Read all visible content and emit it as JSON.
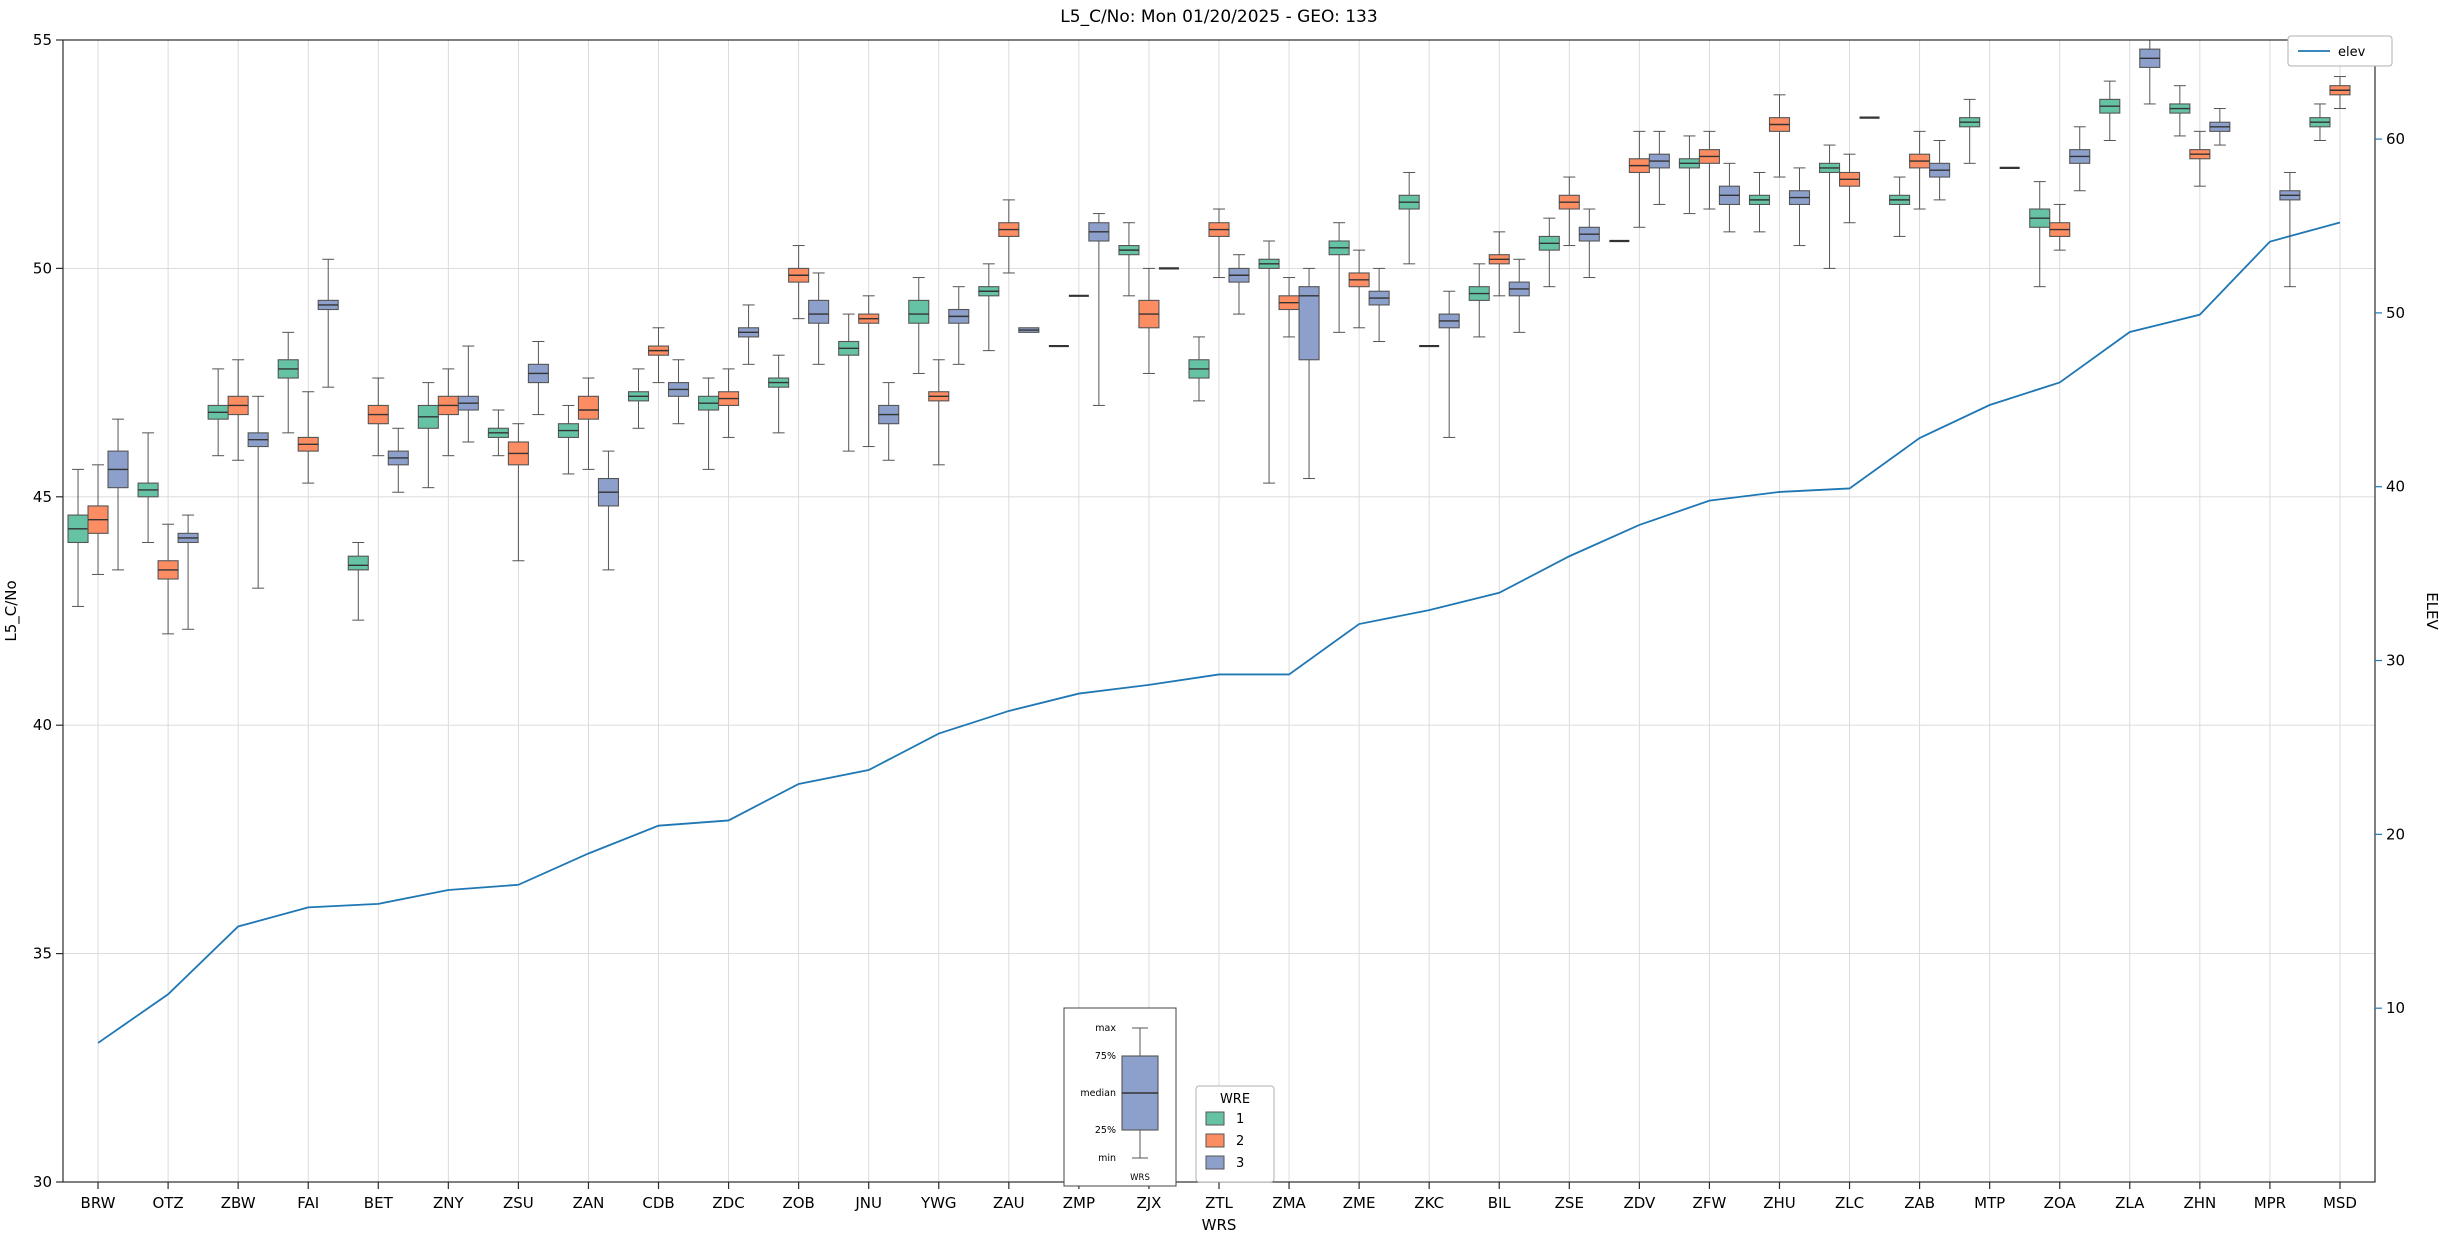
{
  "chart_data": {
    "type": "boxplot+line",
    "title": "L5_C/No: Mon 01/20/2025 - GEO: 133",
    "xlabel": "WRS",
    "ylabel_left": "L5_C/No",
    "ylabel_right": "ELEV",
    "ylim_left": [
      30,
      55
    ],
    "yticks_left": [
      30,
      35,
      40,
      45,
      50,
      55
    ],
    "ylim_right": [
      0,
      65.7
    ],
    "yticks_right": [
      10,
      20,
      30,
      40,
      50,
      60
    ],
    "grid": true,
    "categories": [
      "BRW",
      "OTZ",
      "ZBW",
      "FAI",
      "BET",
      "ZNY",
      "ZSU",
      "ZAN",
      "CDB",
      "ZDC",
      "ZOB",
      "JNU",
      "YWG",
      "ZAU",
      "ZMP",
      "ZJX",
      "ZTL",
      "ZMA",
      "ZME",
      "ZKC",
      "BIL",
      "ZSE",
      "ZDV",
      "ZFW",
      "ZHU",
      "ZLC",
      "ZAB",
      "MTP",
      "ZOA",
      "ZLA",
      "ZHN",
      "MPR",
      "MSD"
    ],
    "series_names": [
      "1",
      "2",
      "3"
    ],
    "legend_box_title": "WRE",
    "legend_line_label": "elev",
    "colors": {
      "series1": "#66c2a5",
      "series2": "#fc8d62",
      "series3": "#8da0cb",
      "line": "#1f77b4",
      "box_edge": "#555555",
      "median": "#333333",
      "grid": "#d8d8d8"
    },
    "box_format": [
      "min",
      "q1",
      "median",
      "q3",
      "max"
    ],
    "boxes": [
      [
        [
          42.6,
          44.0,
          44.3,
          44.6,
          45.6
        ],
        [
          43.3,
          44.2,
          44.5,
          44.8,
          45.7
        ],
        [
          43.4,
          45.2,
          45.6,
          46.0,
          46.7
        ]
      ],
      [
        [
          44.0,
          45.0,
          45.15,
          45.3,
          46.4
        ],
        [
          42.0,
          43.2,
          43.4,
          43.6,
          44.4
        ],
        [
          42.1,
          44.0,
          44.1,
          44.2,
          44.6
        ]
      ],
      [
        [
          45.9,
          46.7,
          46.85,
          47.0,
          47.8
        ],
        [
          45.8,
          46.8,
          47.0,
          47.2,
          48.0
        ],
        [
          43.0,
          46.1,
          46.25,
          46.4,
          47.2
        ]
      ],
      [
        [
          46.4,
          47.6,
          47.8,
          48.0,
          48.6
        ],
        [
          45.3,
          46.0,
          46.15,
          46.3,
          47.3
        ],
        [
          47.4,
          49.1,
          49.2,
          49.3,
          50.2
        ]
      ],
      [
        [
          42.3,
          43.4,
          43.5,
          43.7,
          44.0
        ],
        [
          45.9,
          46.6,
          46.8,
          47.0,
          47.6
        ],
        [
          45.1,
          45.7,
          45.85,
          46.0,
          46.5
        ]
      ],
      [
        [
          45.2,
          46.5,
          46.75,
          47.0,
          47.5
        ],
        [
          45.9,
          46.8,
          47.0,
          47.2,
          47.8
        ],
        [
          46.2,
          46.9,
          47.05,
          47.2,
          48.3
        ]
      ],
      [
        [
          45.9,
          46.3,
          46.4,
          46.5,
          46.9
        ],
        [
          43.6,
          45.7,
          45.95,
          46.2,
          46.6
        ],
        [
          46.8,
          47.5,
          47.7,
          47.9,
          48.4
        ]
      ],
      [
        [
          45.5,
          46.3,
          46.45,
          46.6,
          47.0
        ],
        [
          45.6,
          46.7,
          46.9,
          47.2,
          47.6
        ],
        [
          43.4,
          44.8,
          45.1,
          45.4,
          46.0
        ]
      ],
      [
        [
          46.5,
          47.1,
          47.2,
          47.3,
          47.8
        ],
        [
          47.5,
          48.1,
          48.2,
          48.3,
          48.7
        ],
        [
          46.6,
          47.2,
          47.35,
          47.5,
          48.0
        ]
      ],
      [
        [
          45.6,
          46.9,
          47.05,
          47.2,
          47.6
        ],
        [
          46.3,
          47.0,
          47.15,
          47.3,
          47.8
        ],
        [
          47.9,
          48.5,
          48.6,
          48.7,
          49.2
        ]
      ],
      [
        [
          46.4,
          47.4,
          47.5,
          47.6,
          48.1
        ],
        [
          48.9,
          49.7,
          49.85,
          50.0,
          50.5
        ],
        [
          47.9,
          48.8,
          49.0,
          49.3,
          49.9
        ]
      ],
      [
        [
          46.0,
          48.1,
          48.25,
          48.4,
          49.0
        ],
        [
          46.1,
          48.8,
          48.9,
          49.0,
          49.4
        ],
        [
          45.8,
          46.6,
          46.8,
          47.0,
          47.5
        ]
      ],
      [
        [
          47.7,
          48.8,
          49.0,
          49.3,
          49.8
        ],
        [
          45.7,
          47.1,
          47.2,
          47.3,
          48.0
        ],
        [
          47.9,
          48.8,
          48.95,
          49.1,
          49.6
        ]
      ],
      [
        [
          48.2,
          49.4,
          49.5,
          49.6,
          50.1
        ],
        [
          49.9,
          50.7,
          50.85,
          51.0,
          51.5
        ],
        [
          48.6,
          48.6,
          48.65,
          48.7,
          48.7
        ]
      ],
      [
        [
          48.3,
          48.3,
          48.3,
          48.3,
          48.3
        ],
        [
          49.4,
          49.4,
          49.4,
          49.4,
          49.4
        ],
        [
          47.0,
          50.6,
          50.8,
          51.0,
          51.2
        ]
      ],
      [
        [
          49.4,
          50.3,
          50.4,
          50.5,
          51.0
        ],
        [
          47.7,
          48.7,
          49.0,
          49.3,
          50.0
        ],
        [
          50.0,
          50.0,
          50.0,
          50.0,
          50.0
        ]
      ],
      [
        [
          47.1,
          47.6,
          47.8,
          48.0,
          48.5
        ],
        [
          49.8,
          50.7,
          50.85,
          51.0,
          51.3
        ],
        [
          49.0,
          49.7,
          49.85,
          50.0,
          50.3
        ]
      ],
      [
        [
          45.3,
          50.0,
          50.1,
          50.2,
          50.6
        ],
        [
          48.5,
          49.1,
          49.25,
          49.4,
          49.8
        ],
        [
          45.4,
          48.0,
          49.4,
          49.6,
          50.0
        ]
      ],
      [
        [
          48.6,
          50.3,
          50.45,
          50.6,
          51.0
        ],
        [
          48.7,
          49.6,
          49.75,
          49.9,
          50.4
        ],
        [
          48.4,
          49.2,
          49.35,
          49.5,
          50.0
        ]
      ],
      [
        [
          50.1,
          51.3,
          51.45,
          51.6,
          52.1
        ],
        [
          48.3,
          48.3,
          48.3,
          48.3,
          48.3
        ],
        [
          46.3,
          48.7,
          48.85,
          49.0,
          49.5
        ]
      ],
      [
        [
          48.5,
          49.3,
          49.45,
          49.6,
          50.1
        ],
        [
          49.4,
          50.1,
          50.2,
          50.3,
          50.8
        ],
        [
          48.6,
          49.4,
          49.55,
          49.7,
          50.2
        ]
      ],
      [
        [
          49.6,
          50.4,
          50.55,
          50.7,
          51.1
        ],
        [
          50.5,
          51.3,
          51.45,
          51.6,
          52.0
        ],
        [
          49.8,
          50.6,
          50.75,
          50.9,
          51.3
        ]
      ],
      [
        [
          50.6,
          50.6,
          50.6,
          50.6,
          50.6
        ],
        [
          50.9,
          52.1,
          52.25,
          52.4,
          53.0
        ],
        [
          51.4,
          52.2,
          52.35,
          52.5,
          53.0
        ]
      ],
      [
        [
          51.2,
          52.2,
          52.3,
          52.4,
          52.9
        ],
        [
          51.3,
          52.3,
          52.45,
          52.6,
          53.0
        ],
        [
          50.8,
          51.4,
          51.6,
          51.8,
          52.3
        ]
      ],
      [
        [
          50.8,
          51.4,
          51.5,
          51.6,
          52.1
        ],
        [
          52.0,
          53.0,
          53.15,
          53.3,
          53.8
        ],
        [
          50.5,
          51.4,
          51.55,
          51.7,
          52.2
        ]
      ],
      [
        [
          50.0,
          52.1,
          52.2,
          52.3,
          52.7
        ],
        [
          51.0,
          51.8,
          51.95,
          52.1,
          52.5
        ],
        [
          53.3,
          53.3,
          53.3,
          53.3,
          53.3
        ]
      ],
      [
        [
          50.7,
          51.4,
          51.5,
          51.6,
          52.0
        ],
        [
          51.3,
          52.2,
          52.35,
          52.5,
          53.0
        ],
        [
          51.5,
          52.0,
          52.15,
          52.3,
          52.8
        ]
      ],
      [
        [
          52.3,
          53.1,
          53.2,
          53.3,
          53.7
        ],
        null,
        [
          52.2,
          52.2,
          52.2,
          52.2,
          52.2
        ]
      ],
      [
        [
          49.6,
          50.9,
          51.1,
          51.3,
          51.9
        ],
        [
          50.4,
          50.7,
          50.85,
          51.0,
          51.4
        ],
        [
          51.7,
          52.3,
          52.45,
          52.6,
          53.1
        ]
      ],
      [
        [
          52.8,
          53.4,
          53.55,
          53.7,
          54.1
        ],
        null,
        [
          53.6,
          54.4,
          54.6,
          54.8,
          55.0
        ]
      ],
      [
        [
          52.9,
          53.4,
          53.5,
          53.6,
          54.0
        ],
        [
          51.8,
          52.4,
          52.5,
          52.6,
          53.0
        ],
        [
          52.7,
          53.0,
          53.1,
          53.2,
          53.5
        ]
      ],
      [
        null,
        null,
        [
          49.6,
          51.5,
          51.6,
          51.7,
          52.1
        ]
      ],
      [
        [
          52.8,
          53.1,
          53.2,
          53.3,
          53.6
        ],
        [
          53.5,
          53.8,
          53.9,
          54.0,
          54.2
        ],
        null
      ]
    ],
    "elev_series": {
      "name": "elev",
      "axis": "right",
      "values": [
        8.0,
        10.8,
        14.7,
        15.8,
        16.0,
        16.8,
        17.1,
        18.9,
        20.5,
        20.8,
        22.9,
        23.7,
        25.8,
        27.1,
        28.1,
        28.6,
        29.2,
        29.2,
        32.1,
        32.9,
        33.9,
        36.0,
        37.8,
        39.2,
        39.7,
        39.9,
        42.8,
        44.7,
        46.0,
        48.9,
        49.9,
        54.1,
        55.2
      ]
    },
    "anatomy_legend": {
      "labels": [
        "max",
        "75%",
        "median",
        "25%",
        "min"
      ],
      "xlabel": "WRS"
    }
  }
}
